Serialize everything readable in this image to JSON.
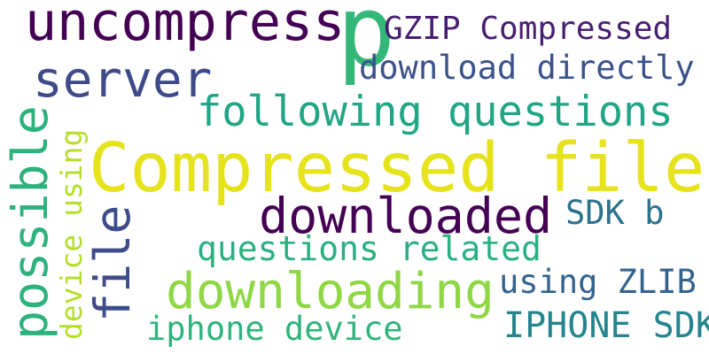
{
  "words": [
    {
      "text": "p",
      "color": "#35b779"
    },
    {
      "text": "Compressed file",
      "color": "#e6e31d"
    },
    {
      "text": "uncompress",
      "color": "#440154"
    },
    {
      "text": "server",
      "color": "#3e4a89"
    },
    {
      "text": "GZIP Compressed",
      "color": "#481f70"
    },
    {
      "text": "download directly",
      "color": "#3b528b"
    },
    {
      "text": "following questions",
      "color": "#21a585"
    },
    {
      "text": "downloaded",
      "color": "#440154"
    },
    {
      "text": "downloading",
      "color": "#8fd744"
    },
    {
      "text": "possible",
      "color": "#2db27d"
    },
    {
      "text": "file",
      "color": "#3e4c8a"
    },
    {
      "text": "device using",
      "color": "#b5de2b"
    },
    {
      "text": "SDK b",
      "color": "#2c728e"
    },
    {
      "text": "questions related",
      "color": "#2ab07f"
    },
    {
      "text": "using ZLIB",
      "color": "#33638d"
    },
    {
      "text": "iphone device",
      "color": "#2fb47c"
    },
    {
      "text": "IPHONE SDK",
      "color": "#25858e"
    }
  ]
}
